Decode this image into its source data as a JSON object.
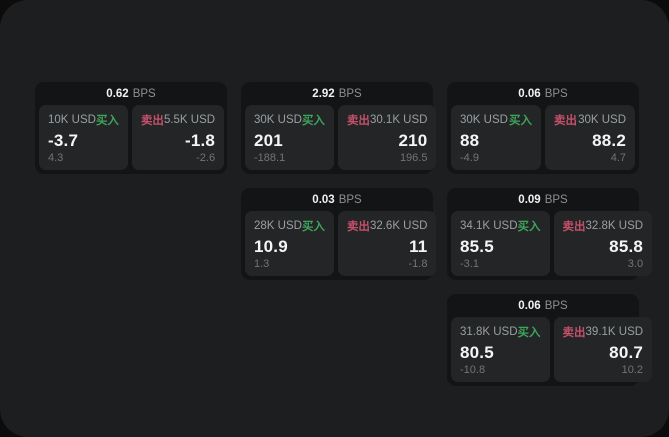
{
  "labels": {
    "bps": "BPS",
    "buy": "买入",
    "sell": "卖出"
  },
  "colors": {
    "window_bg": "#1d1e1f",
    "card_bg": "#131415",
    "panel_bg": "#232527",
    "text_primary": "#f5f5f5",
    "text_secondary": "#9aa0a2",
    "text_dim": "#717578",
    "buy_green": "#3fa35a",
    "sell_red": "#c4506a"
  },
  "cards": [
    {
      "bps": "0.62",
      "row": 1,
      "col": 1,
      "buy": {
        "notional": "10K USD",
        "value": "-3.7",
        "delta": "4.3"
      },
      "sell": {
        "notional": "5.5K USD",
        "value": "-1.8",
        "delta": "-2.6"
      }
    },
    {
      "bps": "2.92",
      "row": 1,
      "col": 2,
      "buy": {
        "notional": "30K USD",
        "value": "201",
        "delta": "-188.1"
      },
      "sell": {
        "notional": "30.1K USD",
        "value": "210",
        "delta": "196.5"
      }
    },
    {
      "bps": "0.06",
      "row": 1,
      "col": 3,
      "buy": {
        "notional": "30K USD",
        "value": "88",
        "delta": "-4.9"
      },
      "sell": {
        "notional": "30K USD",
        "value": "88.2",
        "delta": "4.7"
      }
    },
    {
      "bps": "0.03",
      "row": 2,
      "col": 2,
      "buy": {
        "notional": "28K USD",
        "value": "10.9",
        "delta": "1.3"
      },
      "sell": {
        "notional": "32.6K USD",
        "value": "11",
        "delta": "-1.8"
      }
    },
    {
      "bps": "0.09",
      "row": 2,
      "col": 3,
      "buy": {
        "notional": "34.1K USD",
        "value": "85.5",
        "delta": "-3.1"
      },
      "sell": {
        "notional": "32.8K USD",
        "value": "85.8",
        "delta": "3.0"
      }
    },
    {
      "bps": "0.06",
      "row": 3,
      "col": 3,
      "buy": {
        "notional": "31.8K USD",
        "value": "80.5",
        "delta": "-10.8"
      },
      "sell": {
        "notional": "39.1K USD",
        "value": "80.7",
        "delta": "10.2"
      }
    }
  ]
}
